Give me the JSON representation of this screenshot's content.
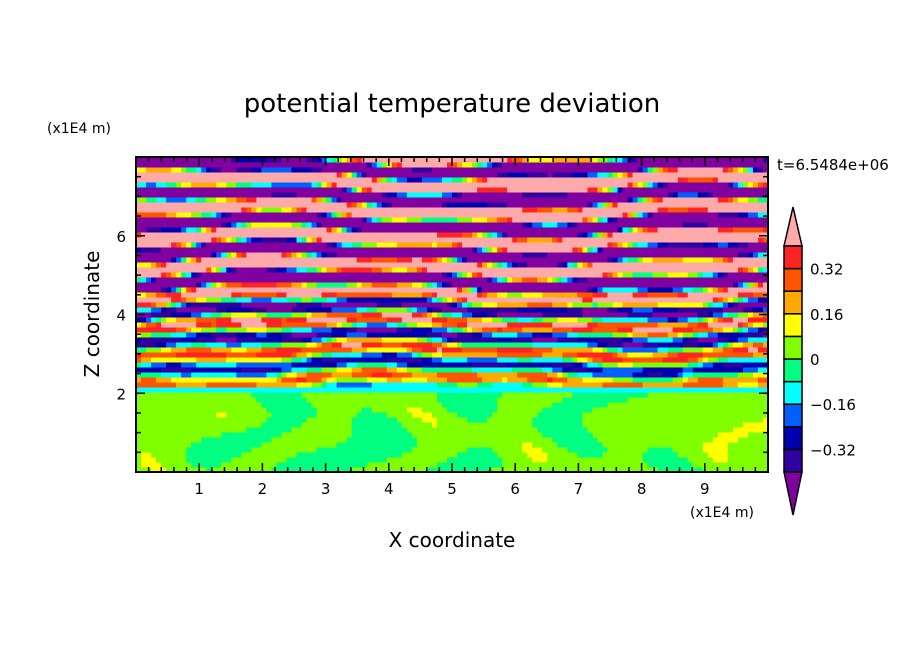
{
  "chart_data": {
    "type": "heatmap",
    "title": "potential temperature deviation",
    "xlabel": "X coordinate",
    "ylabel": "Z coordinate",
    "x_unit": "(x1E4 m)",
    "y_unit": "(x1E4 m)",
    "time_label": "t=6.5484e+06",
    "xlim": [
      0,
      10
    ],
    "ylim": [
      0,
      8
    ],
    "x_ticks": [
      "1",
      "2",
      "3",
      "4",
      "5",
      "6",
      "7",
      "8",
      "9"
    ],
    "y_ticks": [
      "2",
      "4",
      "6"
    ],
    "x_tick_values": [
      1,
      2,
      3,
      4,
      5,
      6,
      7,
      8,
      9
    ],
    "y_tick_values": [
      2,
      4,
      6
    ],
    "colorbar": {
      "levels": [
        -0.4,
        -0.32,
        -0.24,
        -0.16,
        -0.08,
        0,
        0.08,
        0.16,
        0.24,
        0.32,
        0.4
      ],
      "tick_labels": [
        "0.32",
        "0.16",
        "0",
        "−0.16",
        "−0.32"
      ],
      "tick_values": [
        0.32,
        0.16,
        0,
        -0.16,
        -0.32
      ],
      "colors": [
        "#8000a0",
        "#3000a0",
        "#0000b0",
        "#0060ff",
        "#00ffff",
        "#00ff80",
        "#80ff00",
        "#ffff00",
        "#ffaa00",
        "#ff5500",
        "#ff2424",
        "#ffaaaa"
      ],
      "extend": "both"
    },
    "description_of_field": {
      "z_below_2": "values near 0 (green/lime plumes)",
      "z_2_to_4.5": "mixed values from -0.4 to 0.4",
      "z_above_4.5": "alternating horizontal bands beyond +/-0.4"
    }
  }
}
